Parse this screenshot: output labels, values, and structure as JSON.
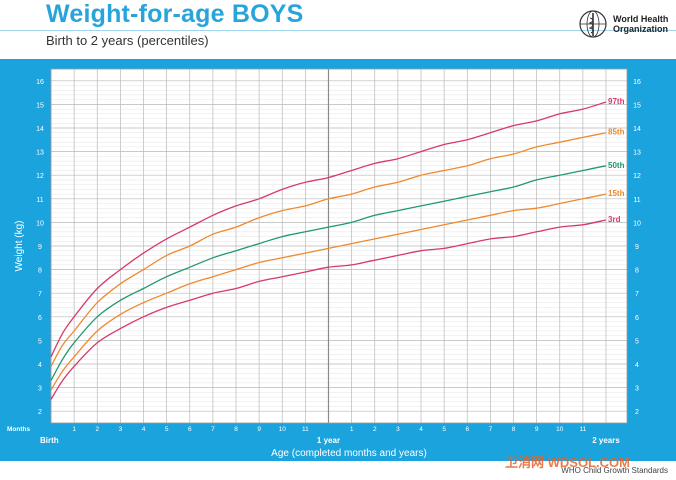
{
  "header": {
    "title": "Weight-for-age BOYS",
    "subtitle": "Birth to 2 years (percentiles)",
    "org_line1": "World Health",
    "org_line2": "Organization",
    "footer": "WHO Child Growth Standards",
    "watermark": "卫消网 WDSOL.COM"
  },
  "colors": {
    "frame": "#1ba3dd",
    "title": "#27a5db",
    "p97": "#d63a6a",
    "p85": "#ef8a2c",
    "p50": "#1f9a6c",
    "p15": "#ef8a2c",
    "p3": "#d63a6a"
  },
  "chart_data": {
    "type": "line",
    "title": "Weight-for-age BOYS",
    "subtitle": "Birth to 2 years (percentiles)",
    "xlabel": "Age (completed months and years)",
    "ylabel": "Weight (kg)",
    "months_label": "Months",
    "xlim": [
      0,
      24
    ],
    "ylim": [
      1.5,
      16.5
    ],
    "y_ticks": [
      2,
      3,
      4,
      5,
      6,
      7,
      8,
      9,
      10,
      11,
      12,
      13,
      14,
      15,
      16
    ],
    "x_tick_labels": [
      {
        "x": 0,
        "label": "Birth",
        "bold": true
      },
      {
        "x": 1,
        "label": "1"
      },
      {
        "x": 2,
        "label": "2"
      },
      {
        "x": 3,
        "label": "3"
      },
      {
        "x": 4,
        "label": "4"
      },
      {
        "x": 5,
        "label": "5"
      },
      {
        "x": 6,
        "label": "6"
      },
      {
        "x": 7,
        "label": "7"
      },
      {
        "x": 8,
        "label": "8"
      },
      {
        "x": 9,
        "label": "9"
      },
      {
        "x": 10,
        "label": "10"
      },
      {
        "x": 11,
        "label": "11"
      },
      {
        "x": 12,
        "label": "1 year",
        "bold": true
      },
      {
        "x": 13,
        "label": "1"
      },
      {
        "x": 14,
        "label": "2"
      },
      {
        "x": 15,
        "label": "3"
      },
      {
        "x": 16,
        "label": "4"
      },
      {
        "x": 17,
        "label": "5"
      },
      {
        "x": 18,
        "label": "6"
      },
      {
        "x": 19,
        "label": "7"
      },
      {
        "x": 20,
        "label": "8"
      },
      {
        "x": 21,
        "label": "9"
      },
      {
        "x": 22,
        "label": "10"
      },
      {
        "x": 23,
        "label": "11"
      },
      {
        "x": 24,
        "label": "2 years",
        "bold": true
      }
    ],
    "grid": true,
    "x": [
      0,
      0.5,
      1,
      2,
      3,
      4,
      5,
      6,
      7,
      8,
      9,
      10,
      11,
      12,
      13,
      14,
      15,
      16,
      17,
      18,
      19,
      20,
      21,
      22,
      23,
      24
    ],
    "series": [
      {
        "name": "97th",
        "color": "#d63a6a",
        "values": [
          4.3,
          5.3,
          6.0,
          7.2,
          8.0,
          8.7,
          9.3,
          9.8,
          10.3,
          10.7,
          11.0,
          11.4,
          11.7,
          11.9,
          12.2,
          12.5,
          12.7,
          13.0,
          13.3,
          13.5,
          13.8,
          14.1,
          14.3,
          14.6,
          14.8,
          15.1
        ]
      },
      {
        "name": "85th",
        "color": "#ef8a2c",
        "values": [
          3.9,
          4.8,
          5.4,
          6.6,
          7.4,
          8.0,
          8.6,
          9.0,
          9.5,
          9.8,
          10.2,
          10.5,
          10.7,
          11.0,
          11.2,
          11.5,
          11.7,
          12.0,
          12.2,
          12.4,
          12.7,
          12.9,
          13.2,
          13.4,
          13.6,
          13.8
        ]
      },
      {
        "name": "50th",
        "color": "#1f9a6c",
        "values": [
          3.3,
          4.2,
          4.9,
          6.0,
          6.7,
          7.2,
          7.7,
          8.1,
          8.5,
          8.8,
          9.1,
          9.4,
          9.6,
          9.8,
          10.0,
          10.3,
          10.5,
          10.7,
          10.9,
          11.1,
          11.3,
          11.5,
          11.8,
          12.0,
          12.2,
          12.4
        ]
      },
      {
        "name": "15th",
        "color": "#ef8a2c",
        "values": [
          2.9,
          3.7,
          4.3,
          5.4,
          6.1,
          6.6,
          7.0,
          7.4,
          7.7,
          8.0,
          8.3,
          8.5,
          8.7,
          8.9,
          9.1,
          9.3,
          9.5,
          9.7,
          9.9,
          10.1,
          10.3,
          10.5,
          10.6,
          10.8,
          11.0,
          11.2
        ]
      },
      {
        "name": "3rd",
        "color": "#d63a6a",
        "values": [
          2.5,
          3.3,
          3.9,
          4.9,
          5.5,
          6.0,
          6.4,
          6.7,
          7.0,
          7.2,
          7.5,
          7.7,
          7.9,
          8.1,
          8.2,
          8.4,
          8.6,
          8.8,
          8.9,
          9.1,
          9.3,
          9.4,
          9.6,
          9.8,
          9.9,
          10.1
        ]
      }
    ]
  }
}
